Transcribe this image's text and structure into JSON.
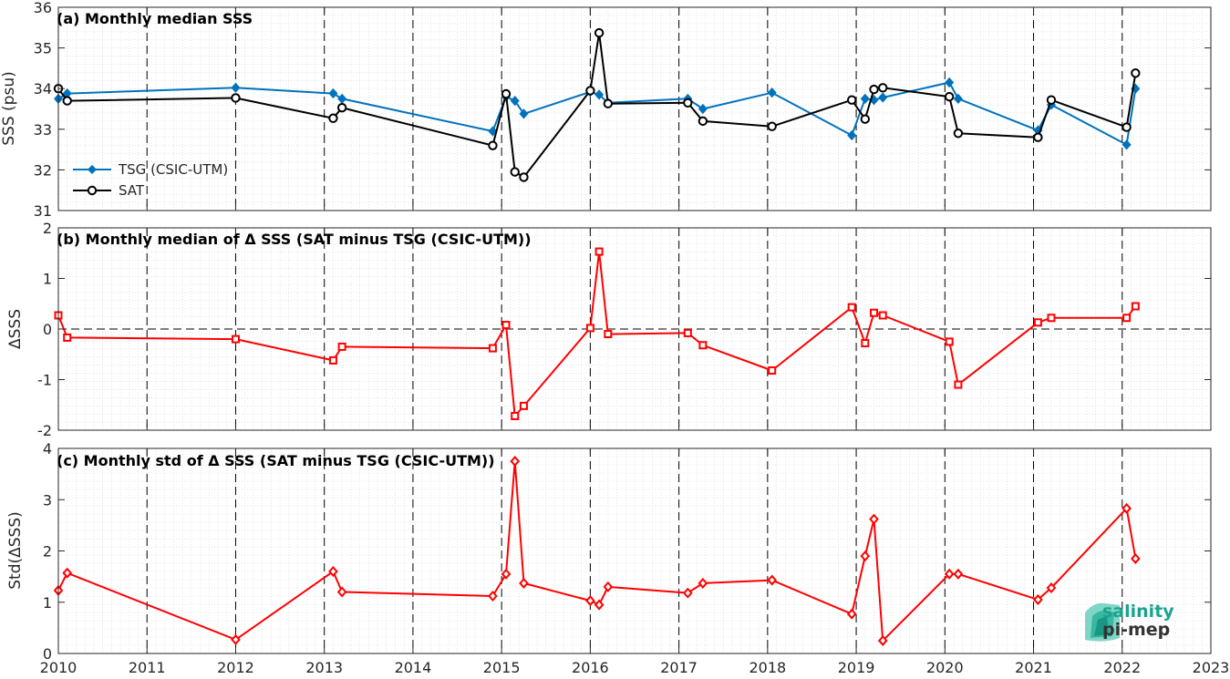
{
  "chart_data": [
    {
      "type": "line",
      "title": "(a) Monthly median SSS",
      "xlabel": "",
      "ylabel": "SSS (psu)",
      "xlim": [
        2010,
        2023
      ],
      "ylim": [
        31,
        36
      ],
      "yticks": [
        31,
        32,
        33,
        34,
        35,
        36
      ],
      "grid": "minor dotted",
      "legend_position": "lower-left",
      "series": [
        {
          "name": "TSG (CSIC-UTM)",
          "color": "#0072BD",
          "marker": "diamond",
          "x": [
            2010.0,
            2010.1,
            2012.0,
            2013.1,
            2013.2,
            2014.9,
            2015.05,
            2015.15,
            2015.25,
            2016.0,
            2016.1,
            2016.2,
            2017.1,
            2017.27,
            2018.05,
            2018.95,
            2019.1,
            2019.2,
            2019.3,
            2020.05,
            2020.15,
            2021.05,
            2021.2,
            2022.05,
            2022.15
          ],
          "y": [
            33.75,
            33.88,
            34.02,
            33.88,
            33.75,
            32.95,
            33.8,
            33.7,
            33.38,
            33.92,
            33.85,
            33.65,
            33.75,
            33.5,
            33.9,
            32.85,
            33.75,
            33.72,
            33.78,
            34.15,
            33.75,
            32.97,
            33.6,
            32.62,
            34.0
          ]
        },
        {
          "name": "SAT",
          "color": "#000000",
          "marker": "circle",
          "x": [
            2010.0,
            2010.1,
            2012.0,
            2013.1,
            2013.2,
            2014.9,
            2015.05,
            2015.15,
            2015.25,
            2016.0,
            2016.1,
            2016.2,
            2017.1,
            2017.27,
            2018.05,
            2018.95,
            2019.1,
            2019.2,
            2019.3,
            2020.05,
            2020.15,
            2021.05,
            2021.2,
            2022.05,
            2022.15
          ],
          "y": [
            34.0,
            33.7,
            33.77,
            33.27,
            33.53,
            32.6,
            33.87,
            31.95,
            31.82,
            33.95,
            35.37,
            33.63,
            33.65,
            33.2,
            33.07,
            33.72,
            33.25,
            33.98,
            34.02,
            33.8,
            32.9,
            32.8,
            33.72,
            33.05,
            34.38
          ]
        }
      ]
    },
    {
      "type": "line",
      "title": "(b) Monthly median of Δ SSS (SAT minus TSG (CSIC-UTM))",
      "xlabel": "",
      "ylabel": "ΔSSS",
      "xlim": [
        2010,
        2023
      ],
      "ylim": [
        -2,
        2
      ],
      "yticks": [
        -2,
        -1,
        0,
        1,
        2
      ],
      "reference_line_y": 0,
      "grid": "minor dotted",
      "series": [
        {
          "color": "#FF0000",
          "marker": "square",
          "x": [
            2010.0,
            2010.1,
            2012.0,
            2013.1,
            2013.2,
            2014.9,
            2015.05,
            2015.15,
            2015.25,
            2016.0,
            2016.1,
            2016.2,
            2017.1,
            2017.27,
            2018.05,
            2018.95,
            2019.1,
            2019.2,
            2019.3,
            2020.05,
            2020.15,
            2021.05,
            2021.2,
            2022.05,
            2022.15
          ],
          "y": [
            0.27,
            -0.17,
            -0.2,
            -0.62,
            -0.35,
            -0.38,
            0.08,
            -1.72,
            -1.52,
            0.02,
            1.53,
            -0.1,
            -0.08,
            -0.32,
            -0.82,
            0.43,
            -0.28,
            0.32,
            0.27,
            -0.25,
            -1.1,
            0.13,
            0.22,
            0.22,
            0.45
          ]
        }
      ]
    },
    {
      "type": "line",
      "title": "(c) Monthly std of Δ SSS (SAT minus TSG (CSIC-UTM))",
      "xlabel": "",
      "ylabel": "Std(ΔSSS)",
      "xlim": [
        2010,
        2023
      ],
      "ylim": [
        0,
        4
      ],
      "yticks": [
        0,
        1,
        2,
        3,
        4
      ],
      "xticks": [
        2010,
        2011,
        2012,
        2013,
        2014,
        2015,
        2016,
        2017,
        2018,
        2019,
        2020,
        2021,
        2022,
        2023
      ],
      "grid": "minor dotted",
      "series": [
        {
          "color": "#FF0000",
          "marker": "diamond",
          "x": [
            2010.0,
            2010.1,
            2012.0,
            2013.1,
            2013.2,
            2014.9,
            2015.05,
            2015.15,
            2015.25,
            2016.0,
            2016.1,
            2016.2,
            2017.1,
            2017.27,
            2018.05,
            2018.95,
            2019.1,
            2019.2,
            2019.3,
            2020.05,
            2020.15,
            2021.05,
            2021.2,
            2022.05,
            2022.15
          ],
          "y": [
            1.23,
            1.57,
            0.27,
            1.6,
            1.2,
            1.12,
            1.55,
            3.75,
            1.37,
            1.03,
            0.95,
            1.3,
            1.18,
            1.37,
            1.43,
            0.77,
            1.9,
            2.62,
            0.25,
            1.55,
            1.55,
            1.05,
            1.28,
            2.83,
            1.85
          ]
        }
      ]
    }
  ],
  "logo": {
    "line1": "salinity",
    "line2": "pi-mep"
  }
}
